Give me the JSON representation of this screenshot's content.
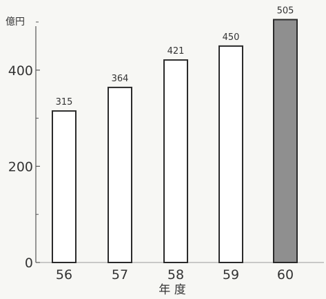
{
  "chart_data": {
    "type": "bar",
    "title": "",
    "ylabel": "億円",
    "xlabel": "年 度",
    "categories": [
      "56",
      "57",
      "58",
      "59",
      "60"
    ],
    "values": [
      315,
      364,
      421,
      450,
      505
    ],
    "value_labels": [
      "315",
      "364",
      "421",
      "450",
      "505"
    ],
    "ylim": [
      0,
      520
    ],
    "y_ticks": [
      0,
      200,
      400
    ],
    "y_tick_labels": [
      "0",
      "200",
      "400"
    ],
    "highlight_index": 4,
    "colors": {
      "bar_fill": "#ffffff",
      "highlight_fill": "#8f8f8f",
      "stroke": "#2a2a2a",
      "axis": "#555555"
    },
    "grid": false,
    "legend": "none"
  }
}
